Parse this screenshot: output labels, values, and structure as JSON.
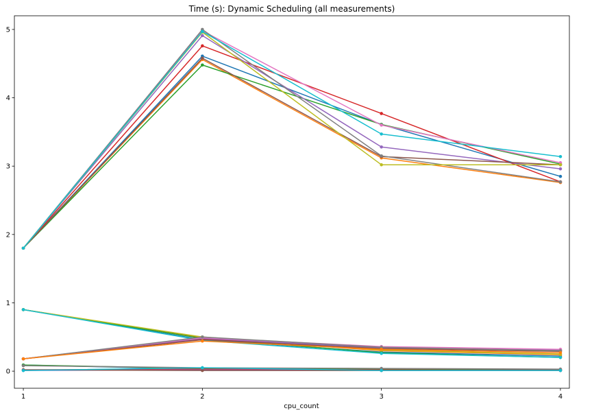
{
  "chart_data": {
    "type": "line",
    "title": "Time (s): Dynamic Scheduling (all measurements)",
    "xlabel": "cpu_count",
    "ylabel": "",
    "x": [
      1,
      2,
      3,
      4
    ],
    "xticks": [
      "1",
      "2",
      "3",
      "4"
    ],
    "yticks": [
      "0",
      "1",
      "2",
      "3",
      "4",
      "5"
    ],
    "xlim": [
      0.95,
      4.05
    ],
    "ylim": [
      -0.25,
      5.2
    ],
    "grid": false,
    "series": [
      {
        "color": "#1f77b4",
        "values": [
          1.8,
          4.61,
          3.61,
          2.85
        ]
      },
      {
        "color": "#ff7f0e",
        "values": [
          1.8,
          4.56,
          3.12,
          2.76
        ]
      },
      {
        "color": "#2ca02c",
        "values": [
          1.8,
          4.48,
          3.61,
          3.03
        ]
      },
      {
        "color": "#d62728",
        "values": [
          1.8,
          4.76,
          3.77,
          2.77
        ]
      },
      {
        "color": "#9467bd",
        "values": [
          1.8,
          4.91,
          3.28,
          2.96
        ]
      },
      {
        "color": "#8c564b",
        "values": [
          1.8,
          4.58,
          3.14,
          3.02
        ]
      },
      {
        "color": "#e377c2",
        "values": [
          1.8,
          4.98,
          3.6,
          3.05
        ]
      },
      {
        "color": "#7f7f7f",
        "values": [
          1.8,
          5.0,
          3.15,
          2.77
        ]
      },
      {
        "color": "#bcbd22",
        "values": [
          1.8,
          4.96,
          3.02,
          3.02
        ]
      },
      {
        "color": "#17becf",
        "values": [
          1.8,
          4.97,
          3.47,
          3.14
        ]
      },
      {
        "color": "#1f77b4",
        "values": [
          0.9,
          0.46,
          0.28,
          0.22
        ]
      },
      {
        "color": "#ff7f0e",
        "values": [
          0.9,
          0.49,
          0.3,
          0.24
        ]
      },
      {
        "color": "#2ca02c",
        "values": [
          0.9,
          0.48,
          0.27,
          0.2
        ]
      },
      {
        "color": "#bcbd22",
        "values": [
          0.9,
          0.5,
          0.31,
          0.25
        ]
      },
      {
        "color": "#17becf",
        "values": [
          0.9,
          0.45,
          0.26,
          0.2
        ]
      },
      {
        "color": "#d62728",
        "values": [
          0.18,
          0.47,
          0.35,
          0.3
        ]
      },
      {
        "color": "#9467bd",
        "values": [
          0.18,
          0.48,
          0.34,
          0.31
        ]
      },
      {
        "color": "#8c564b",
        "values": [
          0.18,
          0.46,
          0.33,
          0.29
        ]
      },
      {
        "color": "#e377c2",
        "values": [
          0.18,
          0.49,
          0.36,
          0.32
        ]
      },
      {
        "color": "#7f7f7f",
        "values": [
          0.18,
          0.5,
          0.35,
          0.3
        ]
      },
      {
        "color": "#ff7f0e",
        "values": [
          0.18,
          0.44,
          0.32,
          0.27
        ]
      },
      {
        "color": "#1f77b4",
        "values": [
          0.09,
          0.03,
          0.02,
          0.01
        ]
      },
      {
        "color": "#2ca02c",
        "values": [
          0.09,
          0.04,
          0.03,
          0.02
        ]
      },
      {
        "color": "#d62728",
        "values": [
          0.02,
          0.03,
          0.02,
          0.01
        ]
      },
      {
        "color": "#9467bd",
        "values": [
          0.01,
          0.02,
          0.01,
          0.01
        ]
      },
      {
        "color": "#8c564b",
        "values": [
          0.02,
          0.01,
          0.01,
          0.02
        ]
      },
      {
        "color": "#7f7f7f",
        "values": [
          0.08,
          0.05,
          0.04,
          0.03
        ]
      },
      {
        "color": "#17becf",
        "values": [
          0.01,
          0.05,
          0.01,
          0.01
        ]
      }
    ]
  }
}
